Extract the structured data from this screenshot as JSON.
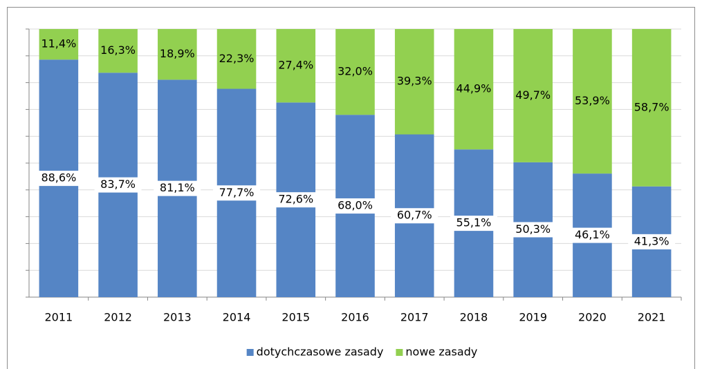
{
  "chart_data": {
    "type": "stacked_bar",
    "categories": [
      "2011",
      "2012",
      "2013",
      "2014",
      "2015",
      "2016",
      "2017",
      "2018",
      "2019",
      "2020",
      "2021"
    ],
    "series": [
      {
        "name": "dotychczasowe zasady",
        "color": "#5585c5",
        "values": [
          88.6,
          83.7,
          81.1,
          77.7,
          72.6,
          68.0,
          60.7,
          55.1,
          50.3,
          46.1,
          41.3
        ],
        "value_labels": [
          "88,6%",
          "83,7%",
          "81,1%",
          "77,7%",
          "72,6%",
          "68,0%",
          "60,7%",
          "55,1%",
          "50,3%",
          "46,1%",
          "41,3%"
        ]
      },
      {
        "name": "nowe zasady",
        "color": "#92d050",
        "values": [
          11.4,
          16.3,
          18.9,
          22.3,
          27.4,
          32.0,
          39.3,
          44.9,
          49.7,
          53.9,
          58.7
        ],
        "value_labels": [
          "11,4%",
          "16,3%",
          "18,9%",
          "22,3%",
          "27,4%",
          "32,0%",
          "39,3%",
          "44,9%",
          "49,7%",
          "53,9%",
          "58,7%"
        ]
      }
    ],
    "ylim": [
      0,
      100
    ],
    "yticks": [
      0,
      10,
      20,
      30,
      40,
      50,
      60,
      70,
      80,
      90,
      100
    ],
    "grid": true,
    "legend": "bottom"
  }
}
